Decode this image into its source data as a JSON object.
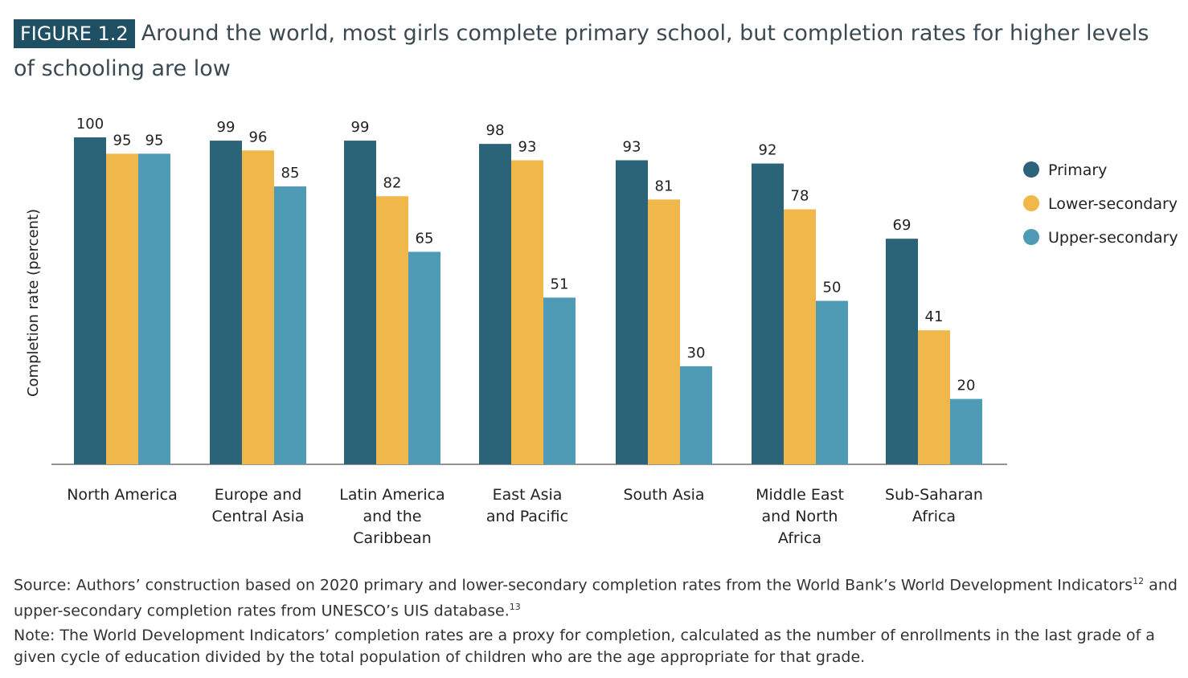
{
  "figure": {
    "badge": "FIGURE 1.2",
    "title": "Around the world, most girls complete primary school, but completion rates for higher levels of schooling are low"
  },
  "chart_data": {
    "type": "bar",
    "ylabel": "Completion rate (percent)",
    "ylim": [
      0,
      100
    ],
    "grid": false,
    "legend_position": "right",
    "categories": [
      [
        "North America"
      ],
      [
        "Europe and",
        "Central Asia"
      ],
      [
        "Latin America",
        "and the",
        "Caribbean"
      ],
      [
        "East Asia",
        "and Pacific"
      ],
      [
        "South Asia"
      ],
      [
        "Middle East",
        "and North",
        "Africa"
      ],
      [
        "Sub-Saharan",
        "Africa"
      ]
    ],
    "series": [
      {
        "name": "Primary",
        "color": "#2b6378",
        "values": [
          100,
          99,
          99,
          98,
          93,
          92,
          69
        ]
      },
      {
        "name": "Lower-secondary",
        "color": "#f0b84a",
        "values": [
          95,
          96,
          82,
          93,
          81,
          78,
          41
        ]
      },
      {
        "name": "Upper-secondary",
        "color": "#4f9bb5",
        "values": [
          95,
          85,
          65,
          51,
          30,
          50,
          20
        ]
      }
    ]
  },
  "source": {
    "text_a": "Source: Authors’ construction based on 2020 primary and lower-secondary completion rates from the World Bank’s World Development Indicators",
    "ref_a": "12",
    "text_b": " and upper-secondary completion rates from UNESCO’s UIS database.",
    "ref_b": "13"
  },
  "note": {
    "text": "Note: The World Development Indicators’ completion rates are a proxy for completion, calculated as the number of enrollments in the last grade of a given cycle of education divided by the total population of children who are the age appropriate for that grade."
  }
}
